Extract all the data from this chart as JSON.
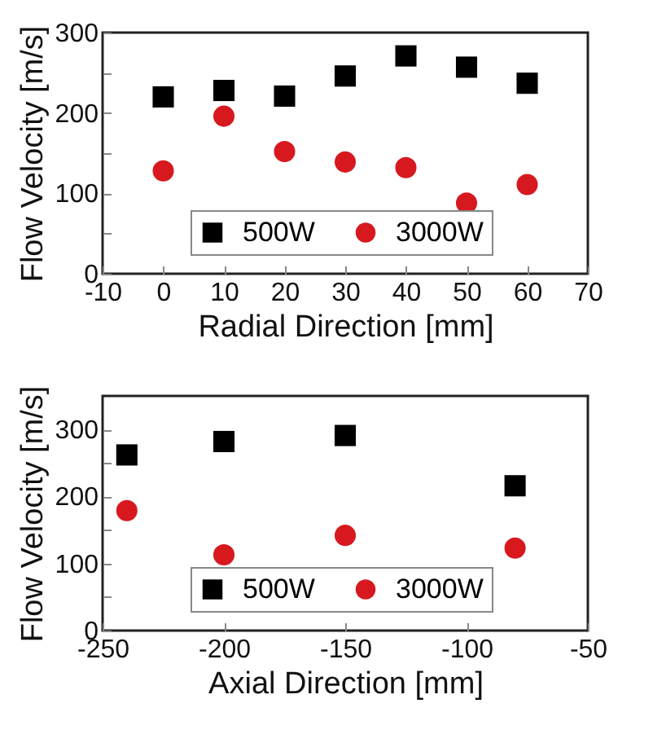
{
  "chart_data": [
    {
      "type": "scatter",
      "xlabel": "Radial Direction [mm]",
      "ylabel": "Flow Velocity [m/s]",
      "x": [
        0,
        10,
        20,
        30,
        40,
        50,
        60
      ],
      "xlim": [
        -10,
        70
      ],
      "xticks": [
        -10,
        0,
        10,
        20,
        30,
        40,
        50,
        60,
        70
      ],
      "ylim": [
        0,
        300
      ],
      "yticks": [
        0,
        {
          "value": 50,
          "label": null
        },
        100,
        {
          "value": 150,
          "label": null
        },
        200,
        {
          "value": 250,
          "label": null
        },
        300
      ],
      "legend": "bottom",
      "grid": false,
      "series": [
        {
          "name": "500W",
          "color": "#000000",
          "marker": "square",
          "values": [
            220,
            228,
            221,
            246,
            271,
            257,
            237
          ]
        },
        {
          "name": "3000W",
          "color": "#d7191f",
          "marker": "circle",
          "values": [
            128,
            196,
            152,
            139,
            132,
            88,
            111
          ]
        }
      ]
    },
    {
      "type": "scatter",
      "xlabel": "Axial Direction [mm]",
      "ylabel": "Flow Velocity [m/s]",
      "x": [
        -240,
        -200,
        -150,
        -80
      ],
      "xlim": [
        -250,
        -50
      ],
      "xticks": [
        -250,
        -200,
        -150,
        -100,
        -50
      ],
      "ylim": [
        0,
        350
      ],
      "yticks": [
        0,
        {
          "value": 50,
          "label": null
        },
        100,
        {
          "value": 150,
          "label": null
        },
        200,
        {
          "value": 250,
          "label": null
        },
        300
      ],
      "legend": "bottom",
      "grid": false,
      "series": [
        {
          "name": "500W",
          "color": "#000000",
          "marker": "square",
          "values": [
            262,
            282,
            291,
            216
          ]
        },
        {
          "name": "3000W",
          "color": "#d7191f",
          "marker": "circle",
          "values": [
            179,
            113,
            142,
            123
          ]
        }
      ]
    }
  ]
}
